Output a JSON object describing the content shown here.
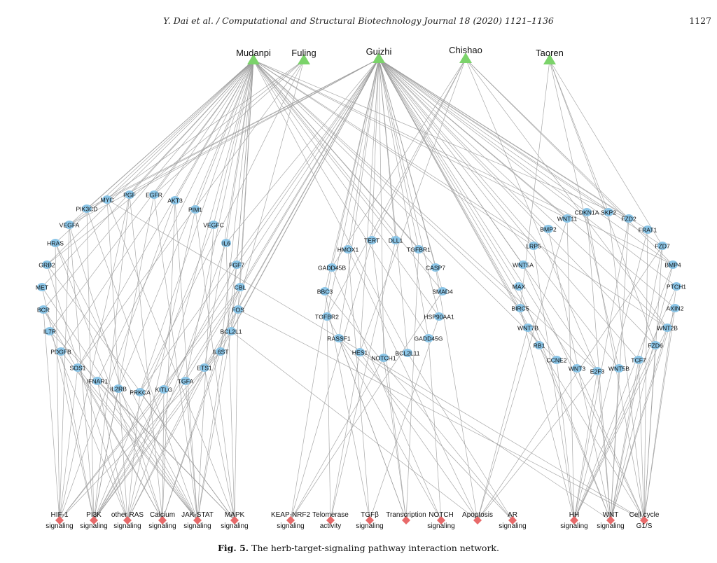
{
  "header": {
    "running_head": "Y. Dai et al. / Computational and Structural Biotechnology Journal 18 (2020) 1121–1136",
    "page_number": "1127"
  },
  "figure": {
    "caption_label": "Fig. 5.",
    "caption_text": "The herb-target-signaling pathway interaction network.",
    "colors": {
      "herb": "#7bd36a",
      "target": "#8cc6e8",
      "pathway": "#e86a6a",
      "edge": "#9a9a9a"
    },
    "herbs": [
      "Mudanpi",
      "Fuling",
      "Guizhi",
      "Chishao",
      "Taoren"
    ],
    "targets": [
      "PGF",
      "EGFR",
      "MYC",
      "AKT3",
      "PIK3CD",
      "PIM1",
      "VEGFA",
      "VEGFC",
      "IL6",
      "HRAS",
      "FGF7",
      "GRB2",
      "CBL",
      "MET",
      "FOS",
      "BCR",
      "BCL2L1",
      "IL7R",
      "IL6ST",
      "PDGFB",
      "ETS1",
      "SOS1",
      "TGFA",
      "IFNAR1",
      "KITLG",
      "IL2RB",
      "PRKCA",
      "TERT",
      "DLL1",
      "HMOX1",
      "TGFBR1",
      "GADD45B",
      "CASP7",
      "BBC3",
      "SMAD4",
      "TGFBR2",
      "HSP90AA1",
      "RASSF1",
      "GADD45G",
      "HES1",
      "BCL2L11",
      "NOTCH1",
      "WNT11",
      "CDKN1A",
      "SKP2",
      "FZD2",
      "BMP2",
      "FRAT1",
      "LRP5",
      "FZD7",
      "WNT5A",
      "BMP4",
      "MAX",
      "PTCH1",
      "BIRC5",
      "AXIN2",
      "WNT7B",
      "WNT2B",
      "RB1",
      "FZD6",
      "CCNE2",
      "TCF7",
      "WNT3",
      "E2F3",
      "WNT5B"
    ],
    "pathways": [
      {
        "line1": "HIF-1",
        "line2": "signaling"
      },
      {
        "line1": "PI3K",
        "line2": "signaling"
      },
      {
        "line1": "other RAS",
        "line2": "signaling"
      },
      {
        "line1": "Calcium",
        "line2": "signaling"
      },
      {
        "line1": "JAK-STAT",
        "line2": "signaling"
      },
      {
        "line1": "MAPK",
        "line2": "signaling"
      },
      {
        "line1": "KEAP-NRF2",
        "line2": "signaling"
      },
      {
        "line1": "Telomerase",
        "line2": "activity"
      },
      {
        "line1": "TGFβ",
        "line2": "signaling"
      },
      {
        "line1": "Transcription",
        "line2": ""
      },
      {
        "line1": "NOTCH",
        "line2": "signaling"
      },
      {
        "line1": "Apoptosis",
        "line2": ""
      },
      {
        "line1": "AR",
        "line2": "signaling"
      },
      {
        "line1": "HH",
        "line2": "signaling"
      },
      {
        "line1": "WNT",
        "line2": "signaling"
      },
      {
        "line1": "Cell cycle",
        "line2": "G1/S"
      }
    ]
  }
}
